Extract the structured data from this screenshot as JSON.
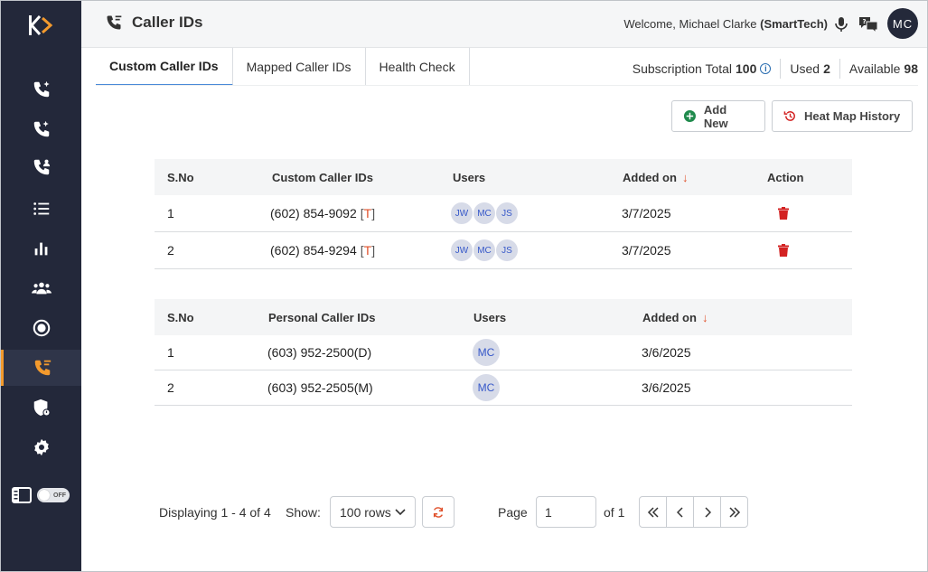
{
  "header": {
    "title": "Caller IDs",
    "welcome_prefix": "Welcome, Michael Clarke",
    "company": "(SmartTech)",
    "avatar_initials": "MC"
  },
  "tabs": [
    {
      "label": "Custom Caller IDs",
      "active": true
    },
    {
      "label": "Mapped Caller IDs",
      "active": false
    },
    {
      "label": "Health Check",
      "active": false
    }
  ],
  "subscription": {
    "total_label": "Subscription Total",
    "total": "100",
    "used_label": "Used",
    "used": "2",
    "available_label": "Available",
    "available": "98"
  },
  "actions": {
    "add_new": "Add New",
    "heat_map_history": "Heat Map History"
  },
  "custom_table": {
    "headers": [
      "S.No",
      "Custom Caller IDs",
      "Users",
      "Added on",
      "Action"
    ],
    "rows": [
      {
        "sno": "1",
        "number": "(602) 854-9092",
        "tag": "T",
        "users": [
          "JW",
          "MC",
          "JS"
        ],
        "added": "3/7/2025"
      },
      {
        "sno": "2",
        "number": "(602) 854-9294",
        "tag": "T",
        "users": [
          "JW",
          "MC",
          "JS"
        ],
        "added": "3/7/2025"
      }
    ]
  },
  "personal_table": {
    "headers": [
      "S.No",
      "Personal Caller IDs",
      "Users",
      "Added on"
    ],
    "rows": [
      {
        "sno": "1",
        "number": "(603) 952-2500(D)",
        "users": [
          "MC"
        ],
        "added": "3/6/2025"
      },
      {
        "sno": "2",
        "number": "(603) 952-2505(M)",
        "users": [
          "MC"
        ],
        "added": "3/6/2025"
      }
    ]
  },
  "pagination": {
    "displaying": "Displaying 1 - 4 of 4",
    "show_label": "Show:",
    "rows_option": "100 rows",
    "page_label": "Page",
    "page_value": "1",
    "of_label": "of 1"
  },
  "sidebar": {
    "toggle_label": "OFF",
    "items": [
      "dialer-plus",
      "dialer-star",
      "contacts-call",
      "list",
      "reports",
      "team",
      "record",
      "caller-ids",
      "security",
      "settings"
    ]
  },
  "colors": {
    "sidebar_bg": "#23283a",
    "accent_orange": "#f39a2d",
    "tag_red": "#e0502a",
    "delete_red": "#d32222",
    "add_green": "#1f8a4c"
  }
}
